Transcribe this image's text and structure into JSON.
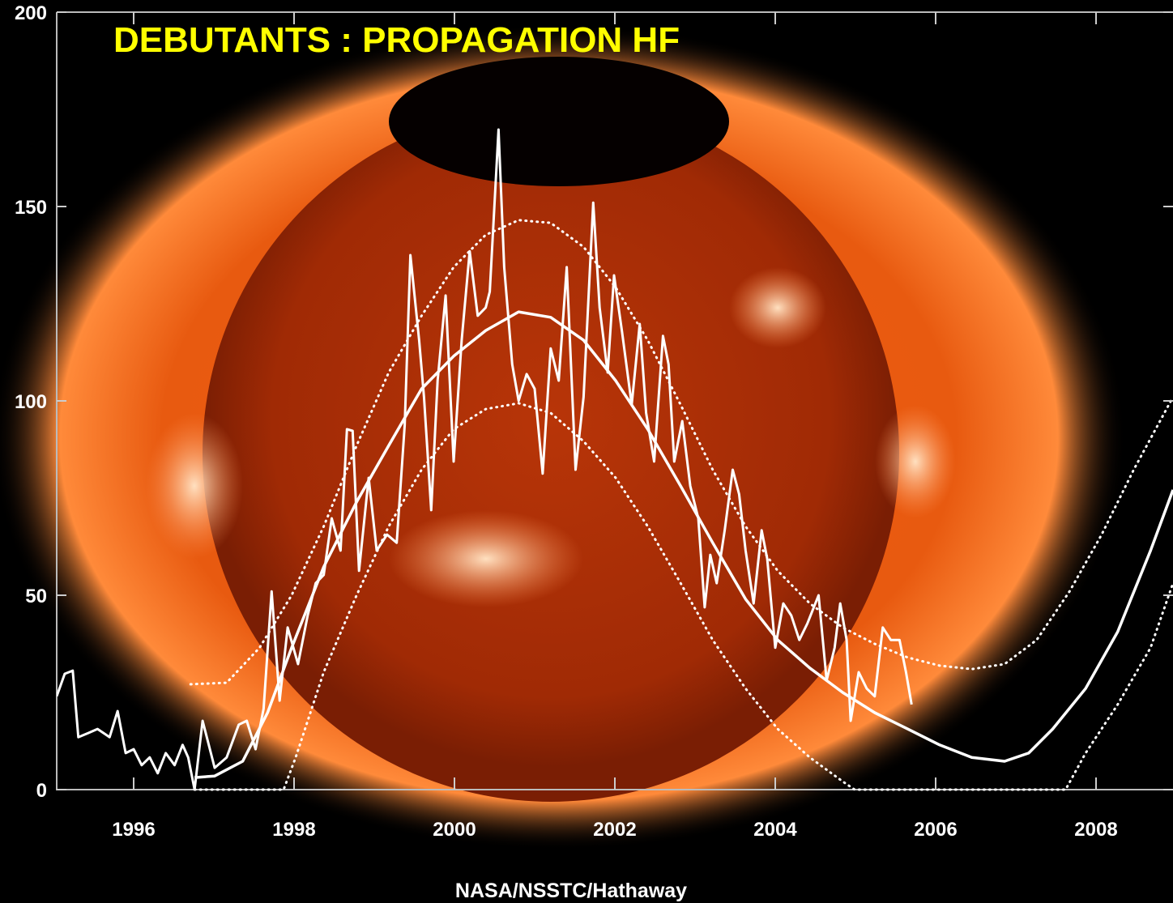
{
  "chart_data": {
    "type": "line",
    "title": "DEBUTANTS : PROPAGATION HF",
    "credit": "NASA/NSSTC/Hathaway",
    "xlim": [
      1995,
      2009
    ],
    "ylim": [
      0,
      200
    ],
    "xticks": [
      1996,
      1998,
      2000,
      2002,
      2004,
      2006,
      2008
    ],
    "yticks": [
      0,
      50,
      100,
      150,
      200
    ],
    "series": [
      {
        "color": "#ffffff",
        "style": "solid",
        "x": [
          1995.04,
          1995.14,
          1995.24,
          1995.31,
          1995.44,
          1995.55,
          1995.7,
          1995.8,
          1995.9,
          1996.0,
          1996.1,
          1996.2,
          1996.3,
          1996.4,
          1996.51,
          1996.61,
          1996.68,
          1996.76,
          1996.86,
          1997.01,
          1997.16,
          1997.31,
          1997.41,
          1997.52,
          1997.62,
          1997.72,
          1997.82,
          1997.92,
          1998.05,
          1998.17,
          1998.27,
          1998.37,
          1998.47,
          1998.58,
          1998.66,
          1998.73,
          1998.81,
          1998.93,
          1999.03,
          1999.16,
          1999.28,
          1999.38,
          1999.45,
          1999.56,
          1999.62,
          1999.71,
          1999.79,
          1999.89,
          1999.99,
          2000.09,
          2000.19,
          2000.29,
          2000.39,
          2000.44,
          2000.55,
          2000.62,
          2000.72,
          2000.8,
          2000.9,
          2001.0,
          2001.1,
          2001.2,
          2001.3,
          2001.4,
          2001.51,
          2001.61,
          2001.73,
          2001.81,
          2001.91,
          2001.99,
          2002.09,
          2002.21,
          2002.31,
          2002.39,
          2002.49,
          2002.6,
          2002.67,
          2002.74,
          2002.84,
          2002.94,
          2003.04,
          2003.12,
          2003.19,
          2003.27,
          2003.37,
          2003.47,
          2003.55,
          2003.63,
          2003.73,
          2003.83,
          2003.9,
          2004.0,
          2004.1,
          2004.2,
          2004.3,
          2004.4,
          2004.54,
          2004.64,
          2004.74,
          2004.81,
          2004.89,
          2004.94,
          2005.04,
          2005.14,
          2005.24,
          2005.34,
          2005.44,
          2005.55,
          2005.63,
          2005.7
        ],
        "values": [
          24.0,
          29.8,
          30.6,
          13.5,
          14.6,
          15.6,
          13.5,
          20.2,
          9.4,
          10.4,
          6.3,
          8.3,
          4.2,
          9.4,
          6.3,
          11.5,
          8.3,
          0,
          17.7,
          5.6,
          8.3,
          16.7,
          17.7,
          10.4,
          20.8,
          51.0,
          22.9,
          41.7,
          32.3,
          44.8,
          53.1,
          55.2,
          69.8,
          61.5,
          92.7,
          92.3,
          56.3,
          80.2,
          61.5,
          65.6,
          63.5,
          93.8,
          137.5,
          115.6,
          101.0,
          71.9,
          105.2,
          127.1,
          84.4,
          115.6,
          138.5,
          121.9,
          124.0,
          128.1,
          169.8,
          134.4,
          109.4,
          100.0,
          106.9,
          103.1,
          81.3,
          113.5,
          105.2,
          134.4,
          82.3,
          101.0,
          151.0,
          124.0,
          107.3,
          132.3,
          117.7,
          99.0,
          119.8,
          96.9,
          84.4,
          116.7,
          109.4,
          84.4,
          94.8,
          78.1,
          69.8,
          46.9,
          60.4,
          53.1,
          66.7,
          82.3,
          76.0,
          61.5,
          47.9,
          66.7,
          59.4,
          36.5,
          47.9,
          44.8,
          38.5,
          42.7,
          50.0,
          28.1,
          36.5,
          47.9,
          38.5,
          17.7,
          30.2,
          26.0,
          24.0,
          41.7,
          38.5,
          38.5,
          30.2,
          21.9
        ]
      },
      {
        "color": "#ffffff",
        "style": "smooth",
        "x": [
          1996.76,
          1997.01,
          1997.36,
          1997.67,
          1997.97,
          1998.37,
          1998.78,
          1999.18,
          1999.59,
          1999.99,
          2000.39,
          2000.8,
          2001.2,
          2001.61,
          2002.01,
          2002.41,
          2002.82,
          2003.22,
          2003.63,
          2004.03,
          2004.43,
          2004.84,
          2005.24,
          2005.65,
          2006.05,
          2006.45,
          2006.86,
          2007.16,
          2007.46,
          2007.87,
          2008.27,
          2008.68,
          2008.96
        ],
        "values": [
          3.1,
          3.5,
          7.3,
          19.8,
          36.5,
          57.3,
          74.0,
          88.5,
          103.1,
          111.5,
          118.1,
          122.9,
          121.5,
          115.6,
          105.2,
          92.7,
          78.1,
          63.5,
          49.0,
          38.5,
          31.3,
          25.0,
          19.8,
          15.6,
          11.5,
          8.3,
          7.3,
          9.4,
          15.6,
          26.0,
          40.6,
          61.5,
          77.1
        ]
      },
      {
        "color": "#ffffff",
        "style": "dotted",
        "x": [
          1996.71,
          1997.16,
          1997.57,
          1997.97,
          1998.37,
          1998.78,
          1999.18,
          1999.59,
          1999.99,
          2000.39,
          2000.8,
          2001.2,
          2001.61,
          2002.01,
          2002.41,
          2002.82,
          2003.22,
          2003.63,
          2004.03,
          2004.43,
          2004.84,
          2005.24,
          2005.65,
          2006.05,
          2006.45,
          2006.86,
          2007.26,
          2007.67,
          2008.07,
          2008.47,
          2008.96
        ],
        "values": [
          27.1,
          27.5,
          36.5,
          50.0,
          67.7,
          88.5,
          107.3,
          121.9,
          134.4,
          142.7,
          146.5,
          145.8,
          139.6,
          129.2,
          115.6,
          99.0,
          82.3,
          67.7,
          56.3,
          47.9,
          41.7,
          37.5,
          34.0,
          31.9,
          31.0,
          32.3,
          38.5,
          51.0,
          65.6,
          82.3,
          101.0
        ]
      },
      {
        "color": "#ffffff",
        "style": "dotted",
        "x": [
          1996.76,
          1997.87,
          1998.02,
          1998.37,
          1998.78,
          1999.18,
          1999.59,
          1999.99,
          2000.39,
          2000.8,
          2001.2,
          2001.61,
          2002.01,
          2002.41,
          2002.82,
          2003.22,
          2003.63,
          2004.03,
          2004.43,
          2004.84,
          2004.99,
          2007.62,
          2007.87,
          2008.27,
          2008.68,
          2008.96
        ],
        "values": [
          0,
          0,
          8.3,
          30.2,
          50.0,
          67.7,
          82.3,
          92.7,
          97.9,
          99.4,
          96.9,
          89.6,
          80.2,
          67.7,
          53.1,
          38.5,
          26.0,
          15.6,
          8.3,
          2.1,
          0,
          0,
          9.4,
          21.9,
          36.5,
          53.1
        ]
      }
    ]
  }
}
